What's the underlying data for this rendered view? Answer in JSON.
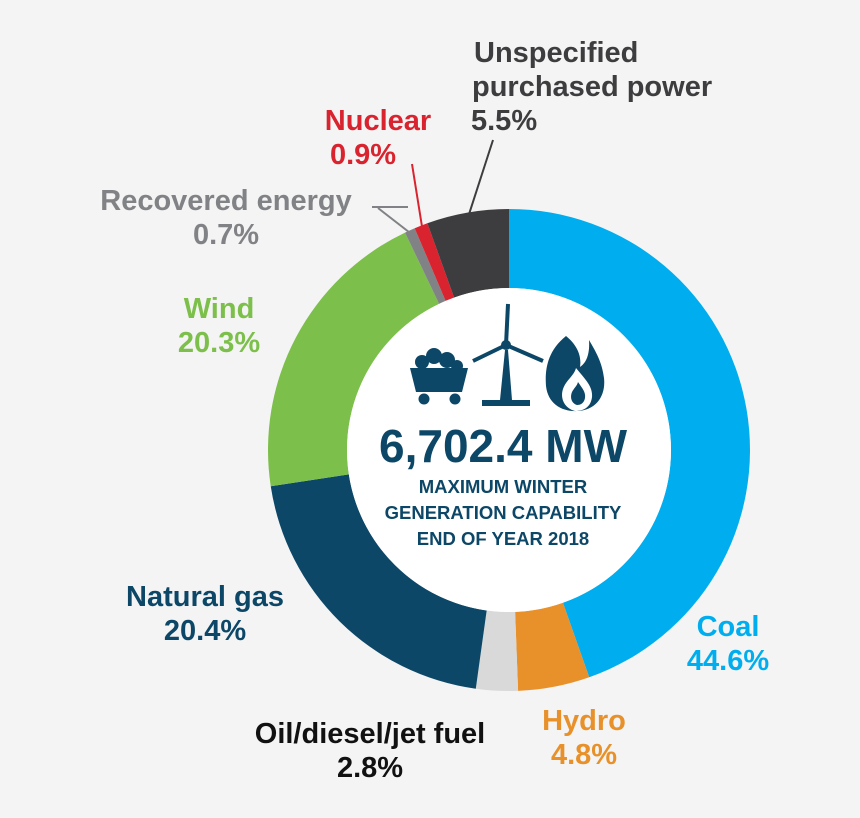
{
  "chart_data": {
    "type": "pie",
    "style": "donut",
    "categories": [
      "Coal",
      "Hydro",
      "Oil/diesel/jet fuel",
      "Natural gas",
      "Wind",
      "Recovered energy",
      "Nuclear",
      "Unspecified purchased power"
    ],
    "values": [
      44.6,
      4.8,
      2.8,
      20.4,
      20.3,
      0.7,
      0.9,
      5.5
    ],
    "value_labels": [
      "44.6%",
      "4.8%",
      "2.8%",
      "20.4%",
      "20.3%",
      "0.7%",
      "0.9%",
      "5.5%"
    ],
    "colors": [
      "#00aeef",
      "#e8912a",
      "#d9d9d9",
      "#0d4767",
      "#7cbf4a",
      "#808285",
      "#d9232e",
      "#3d3d3f"
    ],
    "label_colors": [
      "#00aeef",
      "#e8912a",
      "#111111",
      "#0d4767",
      "#7cbf4a",
      "#808285",
      "#d9232e",
      "#3d3d3f"
    ],
    "start_angle_deg": 0,
    "direction": "clockwise",
    "center": {
      "value": "6,702.4 MW",
      "lines": [
        "MAXIMUM WINTER",
        "GENERATION CAPABILITY",
        "END OF YEAR 2018"
      ],
      "icons": [
        "coal-cart-icon",
        "wind-turbine-icon",
        "flame-icon"
      ]
    }
  }
}
